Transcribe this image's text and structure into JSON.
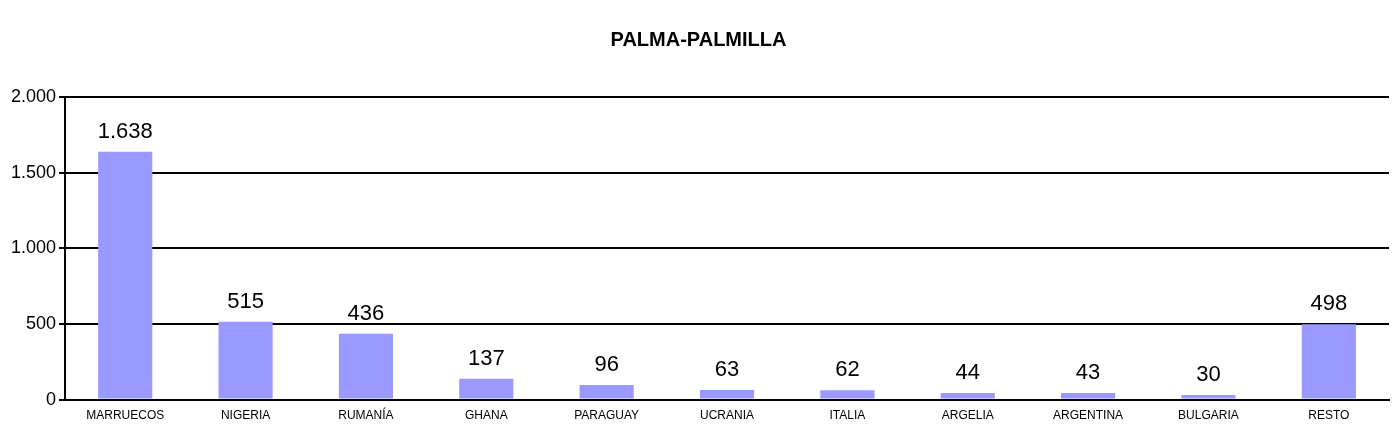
{
  "chart_data": {
    "type": "bar",
    "title": "PALMA-PALMILLA",
    "categories": [
      "MARRUECOS",
      "NIGERIA",
      "RUMANÍA",
      "GHANA",
      "PARAGUAY",
      "UCRANIA",
      "ITALIA",
      "ARGELIA",
      "ARGENTINA",
      "BULGARIA",
      "RESTO"
    ],
    "values": [
      1638,
      515,
      436,
      137,
      96,
      63,
      62,
      44,
      43,
      30,
      498
    ],
    "value_labels": [
      "1.638",
      "515",
      "436",
      "137",
      "96",
      "63",
      "62",
      "44",
      "43",
      "30",
      "498"
    ],
    "color": "#9999ff",
    "ylim": [
      0,
      2000
    ],
    "yticks": [
      {
        "value": 0,
        "label": "0"
      },
      {
        "value": 500,
        "label": "500"
      },
      {
        "value": 1000,
        "label": "1.000"
      },
      {
        "value": 1500,
        "label": "1.500"
      },
      {
        "value": 2000,
        "label": "2.000"
      }
    ],
    "grid": "y",
    "legend": false
  }
}
